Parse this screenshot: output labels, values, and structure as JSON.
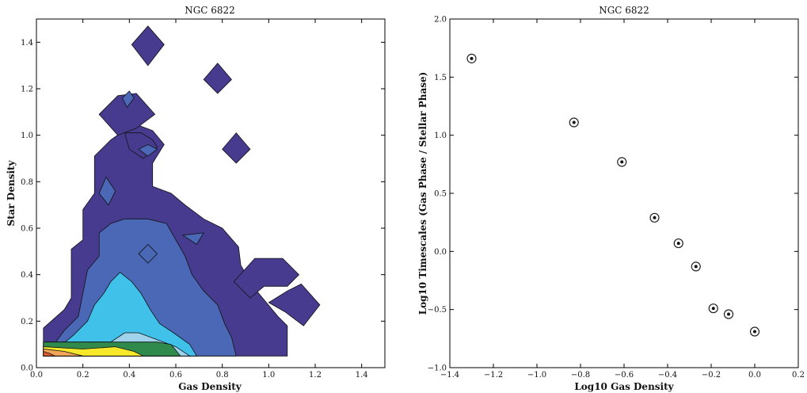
{
  "chart_data": [
    {
      "type": "contour",
      "title": "NGC 6822",
      "xlabel": "Gas Density",
      "ylabel": "Star Density",
      "xlim": [
        0.0,
        1.5
      ],
      "ylim": [
        0.0,
        1.5
      ],
      "xticks": [
        0.0,
        0.2,
        0.4,
        0.6,
        0.8,
        1.0,
        1.2,
        1.4
      ],
      "yticks": [
        0.0,
        0.2,
        0.4,
        0.6,
        0.8,
        1.0,
        1.2,
        1.4
      ],
      "xtick_labels": [
        "0.0",
        "0.2",
        "0.4",
        "0.6",
        "0.8",
        "1.0",
        "1.2",
        "1.4"
      ],
      "ytick_labels": [
        "0.0",
        "0.2",
        "0.4",
        "0.6",
        "0.8",
        "1.0",
        "1.2",
        "1.4"
      ],
      "grid": false,
      "levels": [
        {
          "color": "#473b8f",
          "polys": [
            [
              [
                0.03,
                0.05
              ],
              [
                0.03,
                0.17
              ],
              [
                0.12,
                0.25
              ],
              [
                0.15,
                0.3
              ],
              [
                0.15,
                0.51
              ],
              [
                0.2,
                0.55
              ],
              [
                0.2,
                0.68
              ],
              [
                0.25,
                0.75
              ],
              [
                0.25,
                0.91
              ],
              [
                0.32,
                0.98
              ],
              [
                0.42,
                1.05
              ],
              [
                0.5,
                1.02
              ],
              [
                0.55,
                0.96
              ],
              [
                0.5,
                0.88
              ],
              [
                0.5,
                0.78
              ],
              [
                0.58,
                0.75
              ],
              [
                0.64,
                0.7
              ],
              [
                0.72,
                0.64
              ],
              [
                0.8,
                0.6
              ],
              [
                0.87,
                0.52
              ],
              [
                0.88,
                0.44
              ],
              [
                0.94,
                0.34
              ],
              [
                0.99,
                0.28
              ],
              [
                1.04,
                0.22
              ],
              [
                1.08,
                0.18
              ],
              [
                1.08,
                0.05
              ]
            ],
            [
              [
                0.85,
                0.37
              ],
              [
                0.94,
                0.47
              ],
              [
                1.06,
                0.47
              ],
              [
                1.13,
                0.4
              ],
              [
                1.08,
                0.35
              ],
              [
                0.98,
                0.35
              ],
              [
                0.92,
                0.3
              ]
            ],
            [
              [
                1.0,
                0.28
              ],
              [
                1.08,
                0.33
              ],
              [
                1.14,
                0.36
              ],
              [
                1.22,
                0.27
              ],
              [
                1.15,
                0.18
              ],
              [
                1.07,
                0.24
              ]
            ],
            [
              [
                0.38,
                1.01
              ],
              [
                0.45,
                1.01
              ],
              [
                0.5,
                0.98
              ],
              [
                0.52,
                0.95
              ],
              [
                0.46,
                0.9
              ],
              [
                0.4,
                0.94
              ]
            ],
            [
              [
                0.27,
                1.09
              ],
              [
                0.35,
                1.0
              ],
              [
                0.43,
                1.03
              ],
              [
                0.51,
                1.09
              ],
              [
                0.43,
                1.18
              ],
              [
                0.35,
                1.17
              ]
            ],
            [
              [
                0.41,
                1.39
              ],
              [
                0.48,
                1.3
              ],
              [
                0.55,
                1.39
              ],
              [
                0.48,
                1.47
              ]
            ],
            [
              [
                0.72,
                1.24
              ],
              [
                0.78,
                1.18
              ],
              [
                0.84,
                1.24
              ],
              [
                0.78,
                1.31
              ]
            ],
            [
              [
                0.8,
                0.94
              ],
              [
                0.86,
                0.88
              ],
              [
                0.92,
                0.94
              ],
              [
                0.86,
                1.01
              ]
            ]
          ]
        },
        {
          "color": "#4a68b6",
          "polys": [
            [
              [
                0.06,
                0.05
              ],
              [
                0.06,
                0.08
              ],
              [
                0.12,
                0.16
              ],
              [
                0.18,
                0.22
              ],
              [
                0.2,
                0.32
              ],
              [
                0.22,
                0.42
              ],
              [
                0.27,
                0.48
              ],
              [
                0.27,
                0.58
              ],
              [
                0.32,
                0.62
              ],
              [
                0.38,
                0.64
              ],
              [
                0.48,
                0.64
              ],
              [
                0.56,
                0.62
              ],
              [
                0.6,
                0.55
              ],
              [
                0.64,
                0.48
              ],
              [
                0.67,
                0.4
              ],
              [
                0.72,
                0.33
              ],
              [
                0.78,
                0.27
              ],
              [
                0.81,
                0.19
              ],
              [
                0.84,
                0.13
              ],
              [
                0.86,
                0.05
              ]
            ],
            [
              [
                0.27,
                0.75
              ],
              [
                0.31,
                0.7
              ],
              [
                0.34,
                0.76
              ],
              [
                0.3,
                0.82
              ]
            ],
            [
              [
                0.37,
                1.16
              ],
              [
                0.39,
                1.12
              ],
              [
                0.42,
                1.16
              ],
              [
                0.4,
                1.19
              ]
            ],
            [
              [
                0.44,
                0.94
              ],
              [
                0.48,
                0.91
              ],
              [
                0.52,
                0.94
              ],
              [
                0.48,
                0.96
              ]
            ],
            [
              [
                0.63,
                0.57
              ],
              [
                0.69,
                0.53
              ],
              [
                0.72,
                0.58
              ]
            ],
            [
              [
                0.44,
                0.49
              ],
              [
                0.48,
                0.45
              ],
              [
                0.52,
                0.49
              ],
              [
                0.48,
                0.53
              ]
            ]
          ]
        },
        {
          "color": "#3fc1ea",
          "polys": [
            [
              [
                0.1,
                0.05
              ],
              [
                0.1,
                0.09
              ],
              [
                0.16,
                0.14
              ],
              [
                0.22,
                0.2
              ],
              [
                0.25,
                0.27
              ],
              [
                0.29,
                0.32
              ],
              [
                0.32,
                0.37
              ],
              [
                0.36,
                0.41
              ],
              [
                0.41,
                0.37
              ],
              [
                0.45,
                0.32
              ],
              [
                0.49,
                0.25
              ],
              [
                0.53,
                0.19
              ],
              [
                0.59,
                0.15
              ],
              [
                0.66,
                0.1
              ],
              [
                0.69,
                0.05
              ]
            ]
          ]
        },
        {
          "color": "#9fd3ec",
          "polys": [
            [
              [
                0.03,
                0.05
              ],
              [
                0.03,
                0.11
              ],
              [
                0.32,
                0.11
              ],
              [
                0.38,
                0.15
              ],
              [
                0.44,
                0.15
              ],
              [
                0.52,
                0.12
              ],
              [
                0.6,
                0.09
              ],
              [
                0.66,
                0.05
              ]
            ]
          ]
        },
        {
          "color": "#9ccd78",
          "polys": [
            [
              [
                0.03,
                0.05
              ],
              [
                0.03,
                0.1
              ],
              [
                0.3,
                0.09
              ],
              [
                0.4,
                0.1
              ],
              [
                0.5,
                0.08
              ],
              [
                0.52,
                0.05
              ]
            ]
          ]
        },
        {
          "color": "#2f8a4c",
          "polys": [
            [
              [
                0.03,
                0.05
              ],
              [
                0.03,
                0.11
              ],
              [
                0.4,
                0.11
              ],
              [
                0.52,
                0.11
              ],
              [
                0.58,
                0.1
              ],
              [
                0.62,
                0.05
              ]
            ]
          ]
        },
        {
          "color": "#f7e82a",
          "polys": [
            [
              [
                0.03,
                0.05
              ],
              [
                0.03,
                0.09
              ],
              [
                0.2,
                0.08
              ],
              [
                0.34,
                0.09
              ],
              [
                0.42,
                0.07
              ],
              [
                0.46,
                0.05
              ]
            ]
          ]
        },
        {
          "color": "#f2a657",
          "polys": [
            [
              [
                0.03,
                0.05
              ],
              [
                0.03,
                0.08
              ],
              [
                0.12,
                0.07
              ],
              [
                0.2,
                0.05
              ]
            ]
          ]
        },
        {
          "color": "#df5c2c",
          "polys": [
            [
              [
                0.03,
                0.05
              ],
              [
                0.03,
                0.07
              ],
              [
                0.06,
                0.06
              ],
              [
                0.08,
                0.05
              ]
            ]
          ]
        }
      ]
    },
    {
      "type": "scatter",
      "title": "NGC 6822",
      "xlabel": "Log10 Gas Density",
      "ylabel": "Log10 Timescales (Gas Phase / Stellar Phase)",
      "xlim": [
        -1.4,
        0.2
      ],
      "ylim": [
        -1.0,
        2.0
      ],
      "xticks": [
        -1.4,
        -1.2,
        -1.0,
        -0.8,
        -0.6,
        -0.4,
        -0.2,
        0.0,
        0.2
      ],
      "yticks": [
        -1.0,
        -0.5,
        0.0,
        0.5,
        1.0,
        1.5,
        2.0
      ],
      "xtick_labels": [
        "−1.4",
        "−1.2",
        "−1.0",
        "−0.8",
        "−0.6",
        "−0.4",
        "−0.2",
        "0.0",
        "0.2"
      ],
      "ytick_labels": [
        "−1.0",
        "−0.5",
        "0.0",
        "0.5",
        "1.0",
        "1.5",
        "2.0"
      ],
      "grid": false,
      "x": [
        -1.3,
        -0.83,
        -0.61,
        -0.46,
        -0.35,
        -0.27,
        -0.19,
        -0.12,
        0.0
      ],
      "y": [
        1.66,
        1.11,
        0.77,
        0.29,
        0.07,
        -0.13,
        -0.49,
        -0.54,
        -0.69
      ]
    }
  ]
}
